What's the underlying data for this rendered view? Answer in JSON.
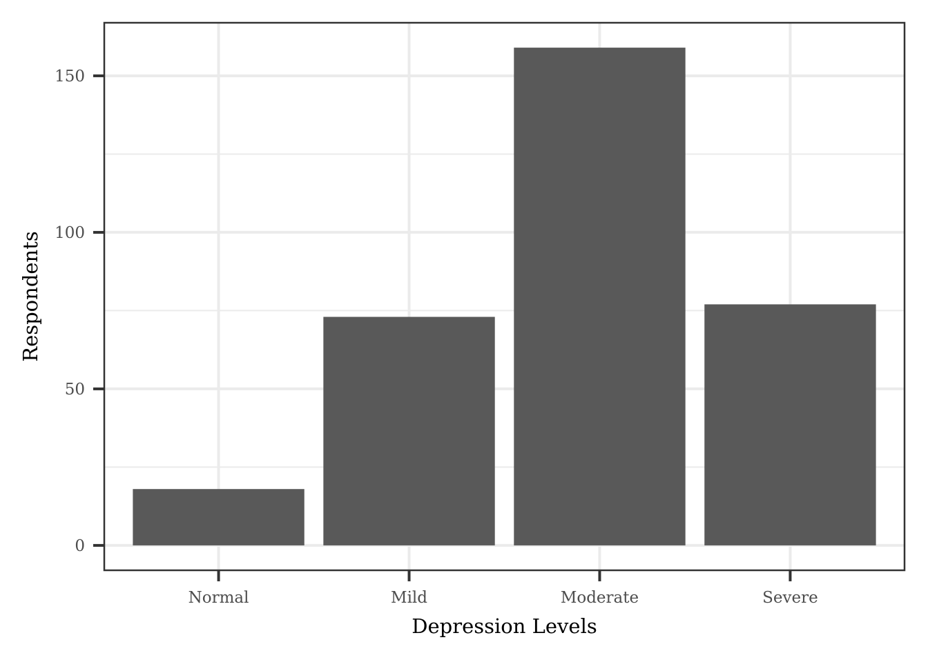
{
  "chart_data": {
    "type": "bar",
    "title": "",
    "xlabel": "Depression Levels",
    "ylabel": "Respondents",
    "categories": [
      "Normal",
      "Mild",
      "Moderate",
      "Severe"
    ],
    "values": [
      18,
      73,
      159,
      77
    ],
    "ylim": [
      -7.95,
      166.95
    ],
    "yticks": [
      0,
      50,
      100,
      150
    ],
    "yticks_minor": [
      25,
      75,
      125
    ],
    "grid": true,
    "legend": "none",
    "colors": {
      "bar": "#595959",
      "grid": "#ebebeb",
      "panel_border": "#333333",
      "background": "#ffffff"
    }
  }
}
